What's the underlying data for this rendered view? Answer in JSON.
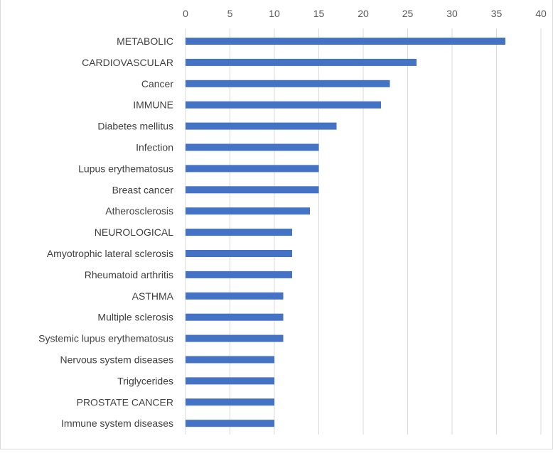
{
  "chart_data": {
    "type": "bar",
    "orientation": "horizontal",
    "categories": [
      "METABOLIC",
      "CARDIOVASCULAR",
      "Cancer",
      "IMMUNE",
      "Diabetes mellitus",
      "Infection",
      "Lupus erythematosus",
      "Breast cancer",
      "Atherosclerosis",
      "NEUROLOGICAL",
      "Amyotrophic lateral sclerosis",
      "Rheumatoid arthritis",
      "ASTHMA",
      "Multiple sclerosis",
      "Systemic lupus erythematosus",
      "Nervous system diseases",
      "Triglycerides",
      "PROSTATE CANCER",
      "Immune system diseases"
    ],
    "values": [
      36,
      26,
      23,
      22,
      17,
      15,
      15,
      15,
      14,
      12,
      12,
      12,
      11,
      11,
      11,
      10,
      10,
      10,
      10
    ],
    "xlim": [
      0,
      40
    ],
    "xticks": [
      "0",
      "5",
      "10",
      "15",
      "20",
      "25",
      "30",
      "35",
      "40"
    ],
    "x_axis_position": "top",
    "grid": "vertical",
    "bar_color": "#4472c4",
    "grid_color": "#d9d9d9",
    "title": "",
    "xlabel": "",
    "ylabel": ""
  }
}
